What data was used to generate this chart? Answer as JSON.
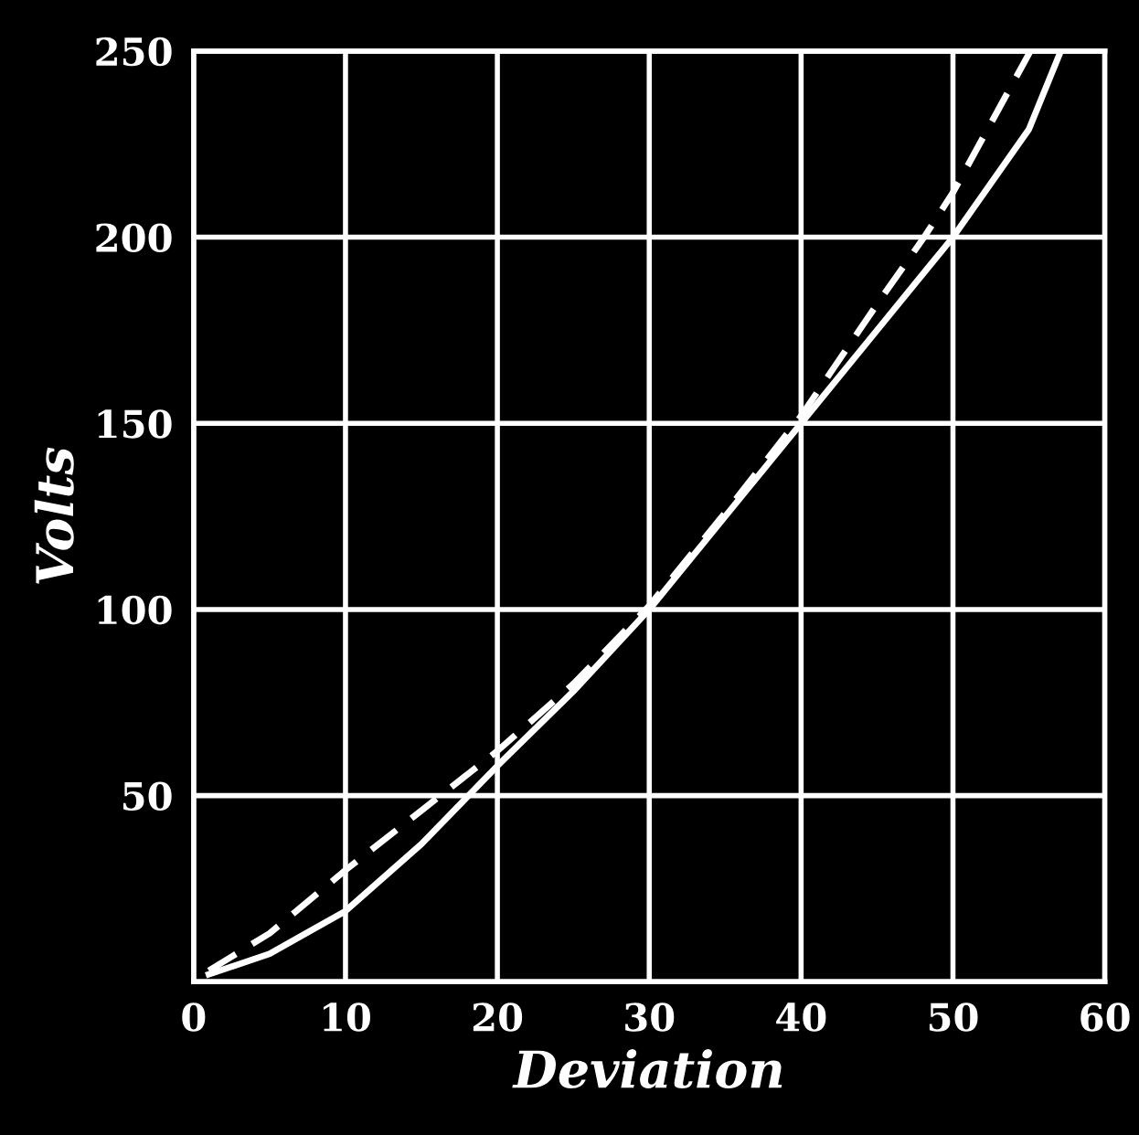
{
  "chart_data": {
    "type": "line",
    "xlabel": "Deviation",
    "ylabel": "Volts",
    "xlim": [
      0,
      60
    ],
    "ylim": [
      0,
      250
    ],
    "xticks": [
      0,
      10,
      20,
      30,
      40,
      50,
      60
    ],
    "yticks": [
      {
        "value": 0,
        "label": null
      },
      50,
      100,
      150,
      200,
      250
    ],
    "grid": true,
    "marker": "none",
    "series": [
      {
        "color": "#ffffff",
        "line_style": "solid",
        "x": [
          1,
          5,
          10,
          15,
          20,
          25,
          30,
          35,
          40,
          45,
          50,
          55,
          57.1
        ],
        "values": [
          2,
          7.5,
          19,
          37,
          58,
          78,
          100,
          125,
          150,
          175,
          200,
          229,
          250
        ]
      },
      {
        "color": "#ffffff",
        "line_style": "dashed",
        "x": [
          1,
          5,
          10,
          15,
          20,
          25,
          30,
          35,
          40,
          45,
          48.1,
          50,
          55.1
        ],
        "values": [
          3,
          13,
          30,
          46,
          62,
          80,
          101,
          126,
          152,
          182,
          200,
          212,
          250
        ]
      }
    ]
  }
}
